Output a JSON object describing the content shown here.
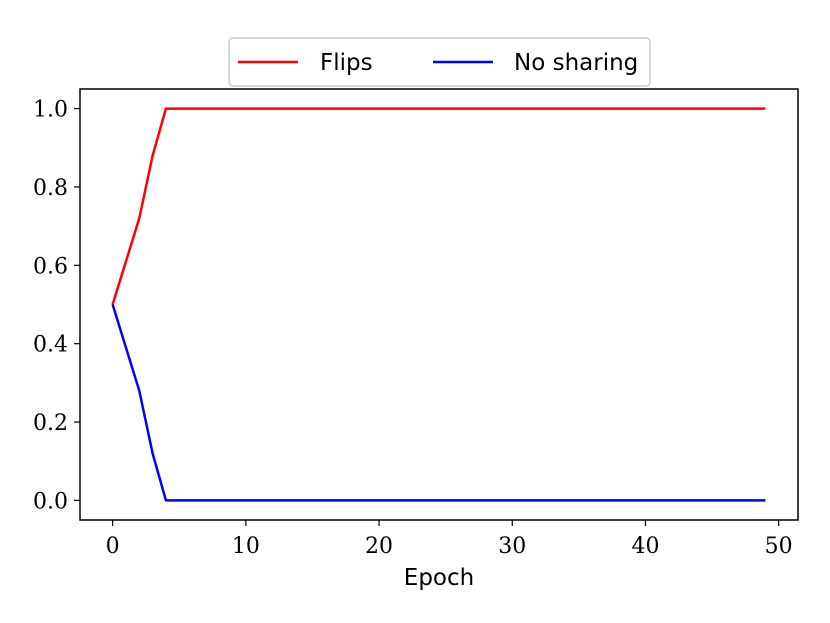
{
  "chart_data": {
    "type": "line",
    "title": "",
    "xlabel": "Epoch",
    "ylabel": "",
    "xlim": [
      -2.45,
      51.45
    ],
    "ylim": [
      -0.05,
      1.05
    ],
    "xticks": [
      0,
      10,
      20,
      30,
      40,
      50
    ],
    "yticks": [
      0.0,
      0.2,
      0.4,
      0.6,
      0.8,
      1.0
    ],
    "xtick_labels": [
      "0",
      "10",
      "20",
      "30",
      "40",
      "50"
    ],
    "ytick_labels": [
      "0.0",
      "0.2",
      "0.4",
      "0.6",
      "0.8",
      "1.0"
    ],
    "grid": false,
    "legend_position": "top-center (above plot)",
    "series": [
      {
        "name": "Flips",
        "color": "#ff0000",
        "x": [
          0,
          1,
          2,
          3,
          4,
          5,
          49
        ],
        "y": [
          0.5,
          0.61,
          0.72,
          0.88,
          1.0,
          1.0,
          1.0
        ]
      },
      {
        "name": "No sharing",
        "color": "#0000ff",
        "x": [
          0,
          1,
          2,
          3,
          4,
          5,
          49
        ],
        "y": [
          0.5,
          0.39,
          0.28,
          0.12,
          0.0,
          0.0,
          0.0
        ]
      }
    ]
  }
}
